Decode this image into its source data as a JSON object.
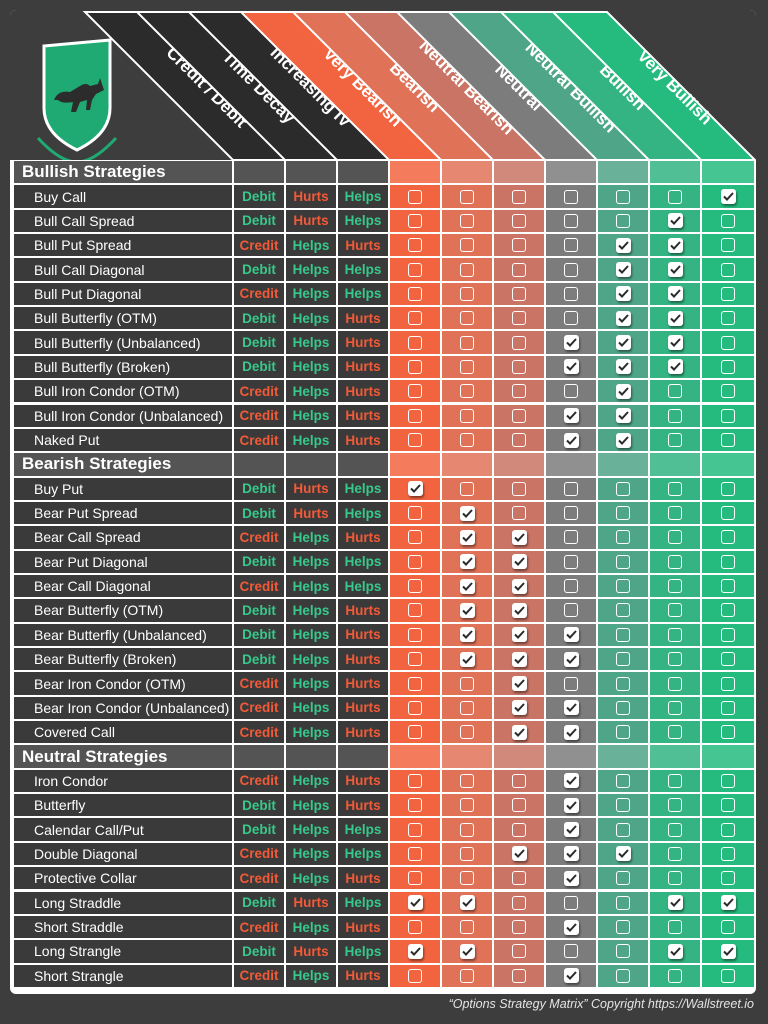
{
  "colors": {
    "bear_strong": "#f26440",
    "bear_mid": "#e07258",
    "bear_soft": "#c97465",
    "neutral": "#7c7c7c",
    "bull_soft": "#4fa587",
    "bull_mid": "#33b482",
    "bull_strong": "#25bb7f",
    "green_text": "#37c98b",
    "red_text": "#f25a38"
  },
  "logo": {
    "icon": "bull-shield-icon"
  },
  "headers": {
    "credit_debit": "Credit / Debit",
    "time_decay": "Time Decay",
    "increasing_iv": "Increasing IV",
    "very_bearish": "Very Bearish",
    "bearish": "Bearish",
    "neutral_bearish": "Neutral Bearish",
    "neutral": "Neutral",
    "neutral_bullish": "Neutral Bullish",
    "bullish": "Bullish",
    "very_bullish": "Very Bullish"
  },
  "sections": [
    {
      "title": "Bullish Strategies",
      "rows": [
        {
          "name": "Buy Call",
          "cd": "Debit",
          "td": "Hurts",
          "iv": "Helps",
          "checks": [
            0,
            0,
            0,
            0,
            0,
            0,
            1
          ]
        },
        {
          "name": "Bull Call Spread",
          "cd": "Debit",
          "td": "Hurts",
          "iv": "Helps",
          "checks": [
            0,
            0,
            0,
            0,
            0,
            1,
            0
          ]
        },
        {
          "name": "Bull Put Spread",
          "cd": "Credit",
          "td": "Helps",
          "iv": "Hurts",
          "checks": [
            0,
            0,
            0,
            0,
            1,
            1,
            0
          ]
        },
        {
          "name": "Bull Call Diagonal",
          "cd": "Debit",
          "td": "Helps",
          "iv": "Helps",
          "checks": [
            0,
            0,
            0,
            0,
            1,
            1,
            0
          ]
        },
        {
          "name": "Bull Put Diagonal",
          "cd": "Credit",
          "td": "Helps",
          "iv": "Helps",
          "checks": [
            0,
            0,
            0,
            0,
            1,
            1,
            0
          ]
        },
        {
          "name": "Bull Butterfly (OTM)",
          "cd": "Debit",
          "td": "Helps",
          "iv": "Hurts",
          "checks": [
            0,
            0,
            0,
            0,
            1,
            1,
            0
          ]
        },
        {
          "name": "Bull Butterfly (Unbalanced)",
          "cd": "Debit",
          "td": "Helps",
          "iv": "Hurts",
          "checks": [
            0,
            0,
            0,
            1,
            1,
            1,
            0
          ]
        },
        {
          "name": "Bull Butterfly (Broken)",
          "cd": "Debit",
          "td": "Helps",
          "iv": "Hurts",
          "checks": [
            0,
            0,
            0,
            1,
            1,
            1,
            0
          ]
        },
        {
          "name": "Bull Iron Condor (OTM)",
          "cd": "Credit",
          "td": "Helps",
          "iv": "Hurts",
          "checks": [
            0,
            0,
            0,
            0,
            1,
            0,
            0
          ]
        },
        {
          "name": "Bull Iron Condor (Unbalanced)",
          "cd": "Credit",
          "td": "Helps",
          "iv": "Hurts",
          "checks": [
            0,
            0,
            0,
            1,
            1,
            0,
            0
          ]
        },
        {
          "name": "Naked Put",
          "cd": "Credit",
          "td": "Helps",
          "iv": "Hurts",
          "checks": [
            0,
            0,
            0,
            1,
            1,
            0,
            0
          ]
        }
      ]
    },
    {
      "title": "Bearish Strategies",
      "rows": [
        {
          "name": "Buy Put",
          "cd": "Debit",
          "td": "Hurts",
          "iv": "Helps",
          "checks": [
            1,
            0,
            0,
            0,
            0,
            0,
            0
          ]
        },
        {
          "name": "Bear Put Spread",
          "cd": "Debit",
          "td": "Hurts",
          "iv": "Helps",
          "checks": [
            0,
            1,
            0,
            0,
            0,
            0,
            0
          ]
        },
        {
          "name": "Bear Call Spread",
          "cd": "Credit",
          "td": "Helps",
          "iv": "Hurts",
          "checks": [
            0,
            1,
            1,
            0,
            0,
            0,
            0
          ]
        },
        {
          "name": "Bear Put Diagonal",
          "cd": "Debit",
          "td": "Helps",
          "iv": "Helps",
          "checks": [
            0,
            1,
            1,
            0,
            0,
            0,
            0
          ]
        },
        {
          "name": "Bear Call Diagonal",
          "cd": "Credit",
          "td": "Helps",
          "iv": "Helps",
          "checks": [
            0,
            1,
            1,
            0,
            0,
            0,
            0
          ]
        },
        {
          "name": "Bear Butterfly (OTM)",
          "cd": "Debit",
          "td": "Helps",
          "iv": "Hurts",
          "checks": [
            0,
            1,
            1,
            0,
            0,
            0,
            0
          ]
        },
        {
          "name": "Bear Butterfly (Unbalanced)",
          "cd": "Debit",
          "td": "Helps",
          "iv": "Hurts",
          "checks": [
            0,
            1,
            1,
            1,
            0,
            0,
            0
          ]
        },
        {
          "name": "Bear Butterfly (Broken)",
          "cd": "Debit",
          "td": "Helps",
          "iv": "Hurts",
          "checks": [
            0,
            1,
            1,
            1,
            0,
            0,
            0
          ]
        },
        {
          "name": "Bear Iron Condor (OTM)",
          "cd": "Credit",
          "td": "Helps",
          "iv": "Hurts",
          "checks": [
            0,
            0,
            1,
            0,
            0,
            0,
            0
          ]
        },
        {
          "name": "Bear Iron Condor (Unbalanced)",
          "cd": "Credit",
          "td": "Helps",
          "iv": "Hurts",
          "checks": [
            0,
            0,
            1,
            1,
            0,
            0,
            0
          ]
        },
        {
          "name": "Covered Call",
          "cd": "Credit",
          "td": "Helps",
          "iv": "Hurts",
          "checks": [
            0,
            0,
            1,
            1,
            0,
            0,
            0
          ]
        }
      ]
    },
    {
      "title": "Neutral Strategies",
      "rows": [
        {
          "name": "Iron Condor",
          "cd": "Credit",
          "td": "Helps",
          "iv": "Hurts",
          "checks": [
            0,
            0,
            0,
            1,
            0,
            0,
            0
          ]
        },
        {
          "name": "Butterfly",
          "cd": "Debit",
          "td": "Helps",
          "iv": "Hurts",
          "checks": [
            0,
            0,
            0,
            1,
            0,
            0,
            0
          ]
        },
        {
          "name": "Calendar Call/Put",
          "cd": "Debit",
          "td": "Helps",
          "iv": "Helps",
          "checks": [
            0,
            0,
            0,
            1,
            0,
            0,
            0
          ]
        },
        {
          "name": "Double Diagonal",
          "cd": "Credit",
          "td": "Helps",
          "iv": "Helps",
          "checks": [
            0,
            0,
            1,
            1,
            1,
            0,
            0
          ]
        },
        {
          "name": "Protective Collar",
          "cd": "Credit",
          "td": "Helps",
          "iv": "Hurts",
          "checks": [
            0,
            0,
            0,
            1,
            0,
            0,
            0
          ]
        },
        {
          "name": "Long Straddle",
          "cd": "Debit",
          "td": "Hurts",
          "iv": "Helps",
          "checks": [
            1,
            1,
            0,
            0,
            0,
            1,
            1
          ]
        },
        {
          "name": "Short Straddle",
          "cd": "Credit",
          "td": "Helps",
          "iv": "Hurts",
          "checks": [
            0,
            0,
            0,
            1,
            0,
            0,
            0
          ]
        },
        {
          "name": "Long Strangle",
          "cd": "Debit",
          "td": "Hurts",
          "iv": "Helps",
          "checks": [
            1,
            1,
            0,
            0,
            0,
            1,
            1
          ]
        },
        {
          "name": "Short Strangle",
          "cd": "Credit",
          "td": "Helps",
          "iv": "Hurts",
          "checks": [
            0,
            0,
            0,
            1,
            0,
            0,
            0
          ]
        }
      ]
    }
  ],
  "footer": "“Options Strategy Matrix” Copyright https://Wallstreet.io"
}
